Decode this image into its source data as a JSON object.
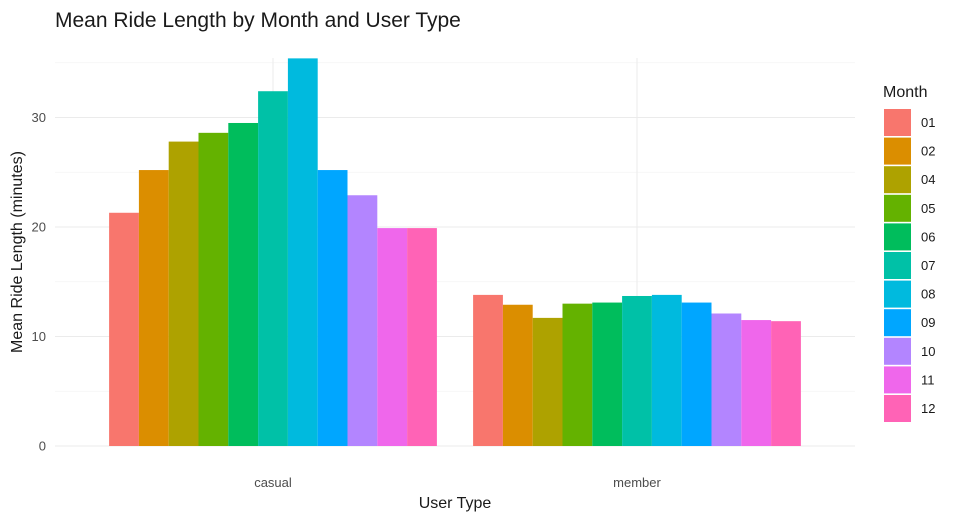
{
  "chart_data": {
    "type": "bar",
    "title": "Mean Ride Length by Month and User Type",
    "xlabel": "User Type",
    "ylabel": "Mean Ride Length (minutes)",
    "categories": [
      "casual",
      "member"
    ],
    "yticks": [
      0,
      10,
      20,
      30
    ],
    "ylim": [
      0,
      36
    ],
    "grid": true,
    "legend": {
      "title": "Month",
      "position": "right"
    },
    "series": [
      {
        "name": "01",
        "color": "#F8766D",
        "values": [
          21.3,
          13.8
        ]
      },
      {
        "name": "02",
        "color": "#DB8E00",
        "values": [
          25.2,
          12.9
        ]
      },
      {
        "name": "04",
        "color": "#AEA200",
        "values": [
          27.8,
          11.7
        ]
      },
      {
        "name": "05",
        "color": "#64B200",
        "values": [
          28.6,
          13.0
        ]
      },
      {
        "name": "06",
        "color": "#00BD5C",
        "values": [
          29.5,
          13.1
        ]
      },
      {
        "name": "07",
        "color": "#00C1A7",
        "values": [
          32.4,
          13.7
        ]
      },
      {
        "name": "08",
        "color": "#00BADE",
        "values": [
          35.4,
          13.8
        ]
      },
      {
        "name": "09",
        "color": "#00A6FF",
        "values": [
          25.2,
          13.1
        ]
      },
      {
        "name": "10",
        "color": "#B385FF",
        "values": [
          22.9,
          12.1
        ]
      },
      {
        "name": "11",
        "color": "#EF67EB",
        "values": [
          19.9,
          11.5
        ]
      },
      {
        "name": "12",
        "color": "#FF63B6",
        "values": [
          19.9,
          11.4
        ]
      }
    ]
  }
}
